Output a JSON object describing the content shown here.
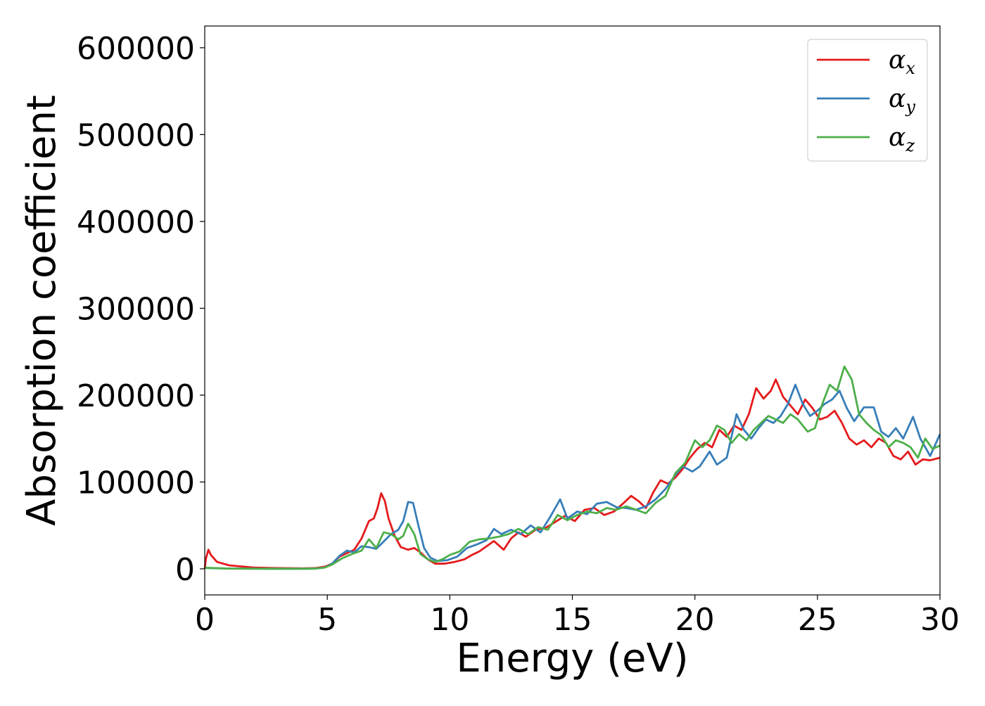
{
  "chart_data": {
    "type": "line",
    "xlabel": "Energy (eV)",
    "ylabel": "Absorption coefficient",
    "xlim": [
      0,
      30
    ],
    "ylim": [
      -30000,
      625000
    ],
    "x_ticks": [
      0,
      5,
      10,
      15,
      20,
      25,
      30
    ],
    "y_ticks": [
      0,
      100000,
      200000,
      300000,
      400000,
      500000,
      600000
    ],
    "x_tick_labels": [
      "0",
      "5",
      "10",
      "15",
      "20",
      "25",
      "30"
    ],
    "y_tick_labels": [
      "0",
      "100000",
      "200000",
      "300000",
      "400000",
      "500000",
      "600000"
    ],
    "grid": false,
    "legend": {
      "placement": "top-right",
      "entries": [
        {
          "base": "α",
          "sub": "x"
        },
        {
          "base": "α",
          "sub": "y"
        },
        {
          "base": "α",
          "sub": "z"
        }
      ]
    },
    "series": [
      {
        "color": "#e41a1c",
        "points": [
          [
            0,
            0
          ],
          [
            0.05,
            12000
          ],
          [
            0.15,
            22000
          ],
          [
            0.25,
            16000
          ],
          [
            0.5,
            8000
          ],
          [
            1,
            4000
          ],
          [
            2,
            1500
          ],
          [
            3,
            800
          ],
          [
            4,
            500
          ],
          [
            4.5,
            800
          ],
          [
            4.9,
            2500
          ],
          [
            5.2,
            6000
          ],
          [
            5.5,
            14000
          ],
          [
            5.8,
            18000
          ],
          [
            6.1,
            22000
          ],
          [
            6.4,
            35000
          ],
          [
            6.7,
            55000
          ],
          [
            6.9,
            58000
          ],
          [
            7.05,
            70000
          ],
          [
            7.2,
            87000
          ],
          [
            7.35,
            78000
          ],
          [
            7.5,
            58000
          ],
          [
            7.75,
            38000
          ],
          [
            8,
            25000
          ],
          [
            8.3,
            22000
          ],
          [
            8.55,
            24000
          ],
          [
            8.8,
            19000
          ],
          [
            9.1,
            11000
          ],
          [
            9.4,
            6000
          ],
          [
            9.8,
            6000
          ],
          [
            10.2,
            8000
          ],
          [
            10.6,
            11000
          ],
          [
            10.9,
            16000
          ],
          [
            11.2,
            20000
          ],
          [
            11.5,
            26000
          ],
          [
            11.8,
            32000
          ],
          [
            12.2,
            22000
          ],
          [
            12.5,
            35000
          ],
          [
            12.8,
            42000
          ],
          [
            13.1,
            37000
          ],
          [
            13.5,
            45000
          ],
          [
            13.9,
            47000
          ],
          [
            14.3,
            54000
          ],
          [
            14.7,
            61000
          ],
          [
            15.1,
            55000
          ],
          [
            15.5,
            68000
          ],
          [
            15.9,
            70000
          ],
          [
            16.3,
            62000
          ],
          [
            16.7,
            66000
          ],
          [
            17.1,
            76000
          ],
          [
            17.4,
            84000
          ],
          [
            17.7,
            78000
          ],
          [
            18,
            70000
          ],
          [
            18.3,
            88000
          ],
          [
            18.6,
            102000
          ],
          [
            18.9,
            98000
          ],
          [
            19.2,
            105000
          ],
          [
            19.5,
            115000
          ],
          [
            19.8,
            128000
          ],
          [
            20.1,
            138000
          ],
          [
            20.4,
            145000
          ],
          [
            20.7,
            140000
          ],
          [
            21,
            160000
          ],
          [
            21.3,
            152000
          ],
          [
            21.6,
            165000
          ],
          [
            21.9,
            160000
          ],
          [
            22.2,
            178000
          ],
          [
            22.5,
            208000
          ],
          [
            22.8,
            196000
          ],
          [
            23.1,
            205000
          ],
          [
            23.3,
            218000
          ],
          [
            23.6,
            198000
          ],
          [
            23.9,
            188000
          ],
          [
            24.2,
            178000
          ],
          [
            24.5,
            195000
          ],
          [
            24.8,
            185000
          ],
          [
            25.1,
            172000
          ],
          [
            25.4,
            175000
          ],
          [
            25.7,
            182000
          ],
          [
            26,
            168000
          ],
          [
            26.3,
            150000
          ],
          [
            26.6,
            143000
          ],
          [
            26.9,
            148000
          ],
          [
            27.2,
            140000
          ],
          [
            27.5,
            150000
          ],
          [
            27.8,
            145000
          ],
          [
            28.1,
            130000
          ],
          [
            28.4,
            126000
          ],
          [
            28.7,
            135000
          ],
          [
            29,
            120000
          ],
          [
            29.3,
            126000
          ],
          [
            29.6,
            125000
          ],
          [
            30,
            128000
          ]
        ]
      },
      {
        "color": "#377eb8",
        "points": [
          [
            0,
            1000
          ],
          [
            1,
            300
          ],
          [
            2,
            150
          ],
          [
            3,
            100
          ],
          [
            4,
            100
          ],
          [
            4.5,
            300
          ],
          [
            4.9,
            1500
          ],
          [
            5.2,
            6000
          ],
          [
            5.5,
            15000
          ],
          [
            5.8,
            21000
          ],
          [
            6.1,
            19000
          ],
          [
            6.4,
            26000
          ],
          [
            6.7,
            25000
          ],
          [
            7,
            23000
          ],
          [
            7.25,
            30000
          ],
          [
            7.6,
            40000
          ],
          [
            7.9,
            45000
          ],
          [
            8.1,
            55000
          ],
          [
            8.3,
            77000
          ],
          [
            8.5,
            76000
          ],
          [
            8.7,
            52000
          ],
          [
            8.95,
            24000
          ],
          [
            9.2,
            13000
          ],
          [
            9.5,
            9000
          ],
          [
            9.9,
            10000
          ],
          [
            10.3,
            14000
          ],
          [
            10.7,
            24000
          ],
          [
            11.1,
            28000
          ],
          [
            11.5,
            33000
          ],
          [
            11.8,
            46000
          ],
          [
            12.1,
            40000
          ],
          [
            12.5,
            45000
          ],
          [
            12.9,
            40000
          ],
          [
            13.3,
            50000
          ],
          [
            13.7,
            42000
          ],
          [
            14.1,
            60000
          ],
          [
            14.5,
            80000
          ],
          [
            14.8,
            58000
          ],
          [
            15.2,
            66000
          ],
          [
            15.6,
            63000
          ],
          [
            16,
            75000
          ],
          [
            16.4,
            77000
          ],
          [
            16.8,
            71000
          ],
          [
            17.2,
            70000
          ],
          [
            17.6,
            68000
          ],
          [
            18,
            72000
          ],
          [
            18.4,
            80000
          ],
          [
            18.8,
            92000
          ],
          [
            19.2,
            108000
          ],
          [
            19.5,
            118000
          ],
          [
            19.9,
            112000
          ],
          [
            20.2,
            118000
          ],
          [
            20.6,
            135000
          ],
          [
            20.9,
            120000
          ],
          [
            21.3,
            128000
          ],
          [
            21.7,
            178000
          ],
          [
            22,
            160000
          ],
          [
            22.3,
            150000
          ],
          [
            22.6,
            162000
          ],
          [
            22.9,
            172000
          ],
          [
            23.2,
            168000
          ],
          [
            23.5,
            176000
          ],
          [
            23.8,
            190000
          ],
          [
            24.1,
            212000
          ],
          [
            24.4,
            190000
          ],
          [
            24.7,
            176000
          ],
          [
            25,
            182000
          ],
          [
            25.3,
            190000
          ],
          [
            25.6,
            195000
          ],
          [
            25.9,
            205000
          ],
          [
            26.2,
            185000
          ],
          [
            26.5,
            170000
          ],
          [
            26.9,
            186000
          ],
          [
            27.3,
            186000
          ],
          [
            27.6,
            158000
          ],
          [
            27.9,
            152000
          ],
          [
            28.2,
            162000
          ],
          [
            28.5,
            150000
          ],
          [
            28.9,
            175000
          ],
          [
            29.2,
            150000
          ],
          [
            29.6,
            130000
          ],
          [
            30,
            155000
          ]
        ]
      },
      {
        "color": "#4daf4a",
        "points": [
          [
            0,
            1200
          ],
          [
            1,
            300
          ],
          [
            2,
            150
          ],
          [
            3,
            100
          ],
          [
            4,
            100
          ],
          [
            4.5,
            300
          ],
          [
            4.9,
            1500
          ],
          [
            5.2,
            5000
          ],
          [
            5.6,
            12000
          ],
          [
            6,
            17000
          ],
          [
            6.4,
            21000
          ],
          [
            6.7,
            34000
          ],
          [
            7,
            24000
          ],
          [
            7.3,
            42000
          ],
          [
            7.6,
            40000
          ],
          [
            7.9,
            34000
          ],
          [
            8.1,
            38000
          ],
          [
            8.3,
            52000
          ],
          [
            8.55,
            40000
          ],
          [
            8.8,
            17000
          ],
          [
            9.1,
            11000
          ],
          [
            9.4,
            8000
          ],
          [
            9.7,
            11000
          ],
          [
            10,
            16000
          ],
          [
            10.4,
            20000
          ],
          [
            10.8,
            31000
          ],
          [
            11.2,
            34000
          ],
          [
            11.6,
            35000
          ],
          [
            12,
            37000
          ],
          [
            12.4,
            40000
          ],
          [
            12.8,
            46000
          ],
          [
            13.2,
            40000
          ],
          [
            13.6,
            48000
          ],
          [
            14,
            45000
          ],
          [
            14.4,
            62000
          ],
          [
            14.8,
            56000
          ],
          [
            15.2,
            62000
          ],
          [
            15.6,
            66000
          ],
          [
            16,
            64000
          ],
          [
            16.4,
            70000
          ],
          [
            16.8,
            68000
          ],
          [
            17.2,
            72000
          ],
          [
            17.6,
            68000
          ],
          [
            18,
            64000
          ],
          [
            18.4,
            76000
          ],
          [
            18.8,
            84000
          ],
          [
            19.2,
            110000
          ],
          [
            19.6,
            122000
          ],
          [
            20,
            148000
          ],
          [
            20.3,
            140000
          ],
          [
            20.6,
            148000
          ],
          [
            20.9,
            165000
          ],
          [
            21.2,
            160000
          ],
          [
            21.5,
            145000
          ],
          [
            21.8,
            155000
          ],
          [
            22.1,
            148000
          ],
          [
            22.4,
            160000
          ],
          [
            22.7,
            168000
          ],
          [
            23,
            176000
          ],
          [
            23.3,
            172000
          ],
          [
            23.6,
            168000
          ],
          [
            23.9,
            178000
          ],
          [
            24.2,
            172000
          ],
          [
            24.6,
            158000
          ],
          [
            24.9,
            162000
          ],
          [
            25.2,
            190000
          ],
          [
            25.5,
            212000
          ],
          [
            25.8,
            205000
          ],
          [
            26.1,
            233000
          ],
          [
            26.4,
            218000
          ],
          [
            26.7,
            178000
          ],
          [
            27,
            168000
          ],
          [
            27.3,
            160000
          ],
          [
            27.6,
            154000
          ],
          [
            27.9,
            140000
          ],
          [
            28.2,
            148000
          ],
          [
            28.5,
            145000
          ],
          [
            28.8,
            140000
          ],
          [
            29.1,
            128000
          ],
          [
            29.4,
            150000
          ],
          [
            29.7,
            138000
          ],
          [
            30,
            142000
          ]
        ]
      }
    ]
  }
}
